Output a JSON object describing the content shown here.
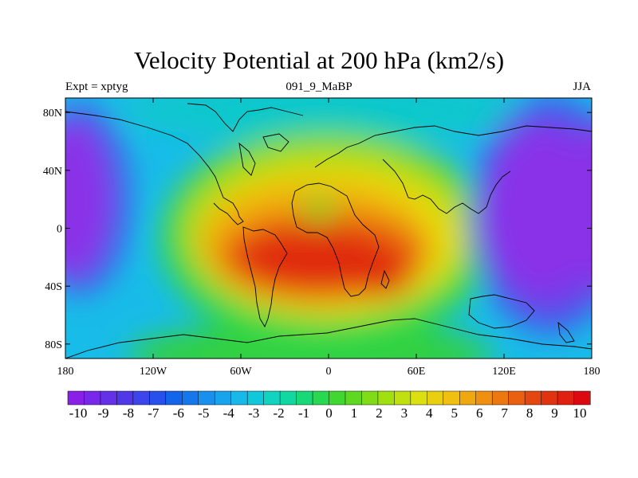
{
  "chart_data": {
    "type": "heatmap",
    "title": "Velocity Potential at 200 hPa (km2/s)",
    "left_subtitle": "Expt = xptyg",
    "center_subtitle": "091_9_MaBP",
    "right_subtitle": "JJA",
    "x_ticks": [
      "180",
      "120W",
      "60W",
      "0",
      "60E",
      "120E",
      "180"
    ],
    "x_tick_values": [
      -180,
      -120,
      -60,
      0,
      60,
      120,
      180
    ],
    "y_ticks": [
      "80N",
      "40N",
      "0",
      "40S",
      "80S"
    ],
    "y_tick_values": [
      80,
      40,
      0,
      -40,
      -80
    ],
    "xlim": [
      -180,
      180
    ],
    "ylim": [
      -90,
      90
    ],
    "colorbar": {
      "labels": [
        "-10",
        "-9",
        "-8",
        "-7",
        "-6",
        "-5",
        "-4",
        "-3",
        "-2",
        "-1",
        "0",
        "1",
        "2",
        "3",
        "4",
        "5",
        "6",
        "7",
        "8",
        "9",
        "10"
      ],
      "range": [
        -10,
        10
      ]
    },
    "field_description": [
      {
        "lon": -15,
        "lat": -25,
        "value": 10
      },
      {
        "lon": 45,
        "lat": -35,
        "value": 9
      },
      {
        "lon": -30,
        "lat": 15,
        "value": 7
      },
      {
        "lon": 40,
        "lat": 10,
        "value": 6
      },
      {
        "lon": 0,
        "lat": 15,
        "value": 2
      },
      {
        "lon": 160,
        "lat": 20,
        "value": -10
      },
      {
        "lon": -165,
        "lat": 25,
        "value": -9
      },
      {
        "lon": 0,
        "lat": 80,
        "value": -2
      },
      {
        "lon": 90,
        "lat": -80,
        "value": 2
      }
    ]
  }
}
